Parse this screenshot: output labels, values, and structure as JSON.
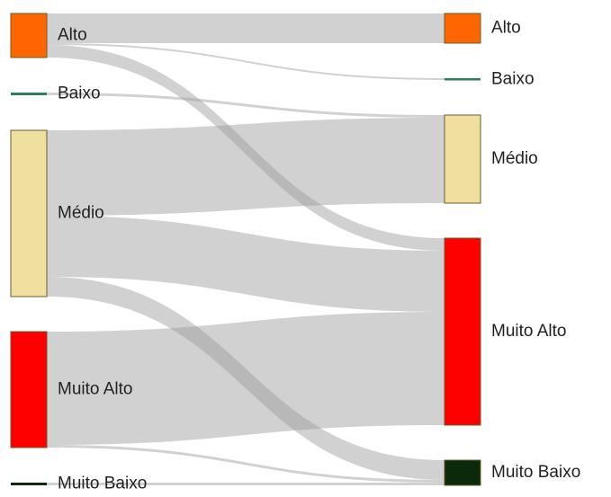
{
  "chart_data": {
    "type": "sankey",
    "left_nodes": [
      {
        "name": "Alto",
        "color": "#ff6600"
      },
      {
        "name": "Baixo",
        "color": "#2e7d5b"
      },
      {
        "name": "Médio",
        "color": "#f0e0a0"
      },
      {
        "name": "Muito Alto",
        "color": "#ff0000"
      },
      {
        "name": "Muito Baixo",
        "color": "#0b2a0b"
      }
    ],
    "right_nodes": [
      {
        "name": "Alto",
        "color": "#ff6600"
      },
      {
        "name": "Baixo",
        "color": "#2e7d5b"
      },
      {
        "name": "Médio",
        "color": "#f0e0a0"
      },
      {
        "name": "Muito Alto",
        "color": "#ff0000"
      },
      {
        "name": "Muito Baixo",
        "color": "#0b2a0b"
      }
    ],
    "links": [
      {
        "source": "Alto",
        "target": "Alto",
        "value": 33
      },
      {
        "source": "Alto",
        "target": "Baixo",
        "value": 2
      },
      {
        "source": "Alto",
        "target": "Muito Alto",
        "value": 14
      },
      {
        "source": "Baixo",
        "target": "Médio",
        "value": 3
      },
      {
        "source": "Médio",
        "target": "Médio",
        "value": 95
      },
      {
        "source": "Médio",
        "target": "Muito Alto",
        "value": 68
      },
      {
        "source": "Médio",
        "target": "Muito Baixo",
        "value": 22
      },
      {
        "source": "Muito Alto",
        "target": "Muito Alto",
        "value": 126
      },
      {
        "source": "Muito Alto",
        "target": "Muito Baixo",
        "value": 3
      },
      {
        "source": "Muito Baixo",
        "target": "Muito Baixo",
        "value": 3
      }
    ],
    "link_color": "#9a9a9a"
  }
}
